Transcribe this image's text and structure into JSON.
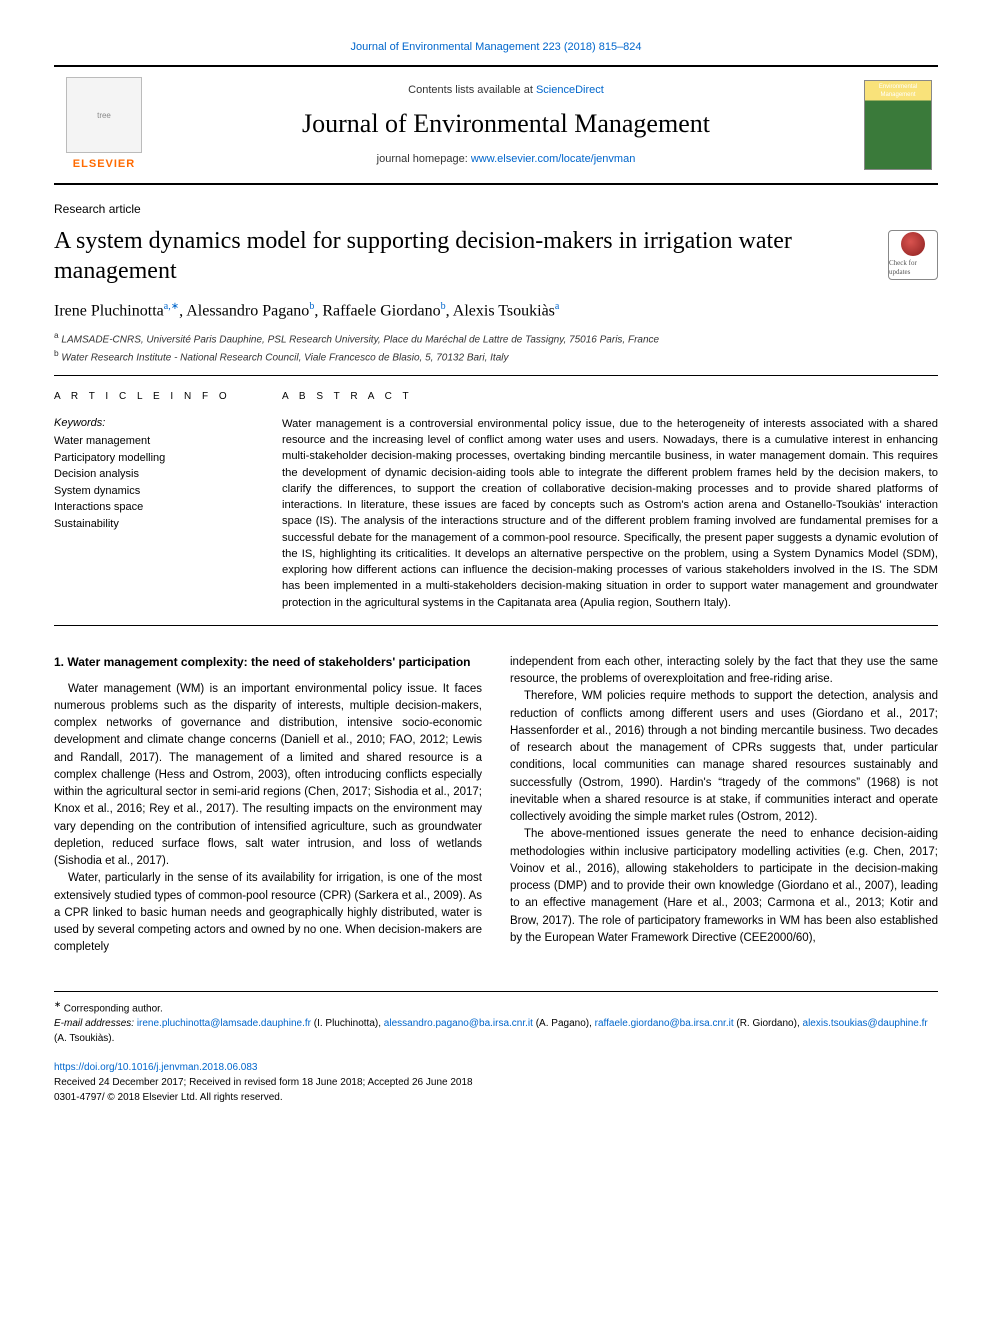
{
  "header": {
    "citation": "Journal of Environmental Management 223 (2018) 815–824",
    "contents_prefix": "Contents lists available at ",
    "contents_link": "ScienceDirect",
    "journal_name": "Journal of Environmental Management",
    "homepage_prefix": "journal homepage: ",
    "homepage_link": "www.elsevier.com/locate/jenvman",
    "publisher_label": "ELSEVIER",
    "cover_text": "Environmental Management"
  },
  "article": {
    "type": "Research article",
    "title": "A system dynamics model for supporting decision-makers in irrigation water management",
    "updates_badge": "Check for updates",
    "authors_html": "Irene Pluchinotta",
    "authors": [
      {
        "name": "Irene Pluchinotta",
        "aff": "a,",
        "corr": "∗"
      },
      {
        "name": "Alessandro Pagano",
        "aff": "b"
      },
      {
        "name": "Raffaele Giordano",
        "aff": "b"
      },
      {
        "name": "Alexis Tsoukiàs",
        "aff": "a"
      }
    ],
    "affiliations": [
      {
        "marker": "a",
        "text": "LAMSADE-CNRS, Université Paris Dauphine, PSL Research University, Place du Maréchal de Lattre de Tassigny, 75016 Paris, France"
      },
      {
        "marker": "b",
        "text": "Water Research Institute - National Research Council, Viale Francesco de Blasio, 5, 70132 Bari, Italy"
      }
    ]
  },
  "info": {
    "heading_left": "A R T I C L E  I N F O",
    "heading_right": "A B S T R A C T",
    "keywords_label": "Keywords:",
    "keywords": [
      "Water management",
      "Participatory modelling",
      "Decision analysis",
      "System dynamics",
      "Interactions space",
      "Sustainability"
    ],
    "abstract": "Water management is a controversial environmental policy issue, due to the heterogeneity of interests associated with a shared resource and the increasing level of conflict among water uses and users. Nowadays, there is a cumulative interest in enhancing multi-stakeholder decision-making processes, overtaking binding mercantile business, in water management domain. This requires the development of dynamic decision-aiding tools able to integrate the different problem frames held by the decision makers, to clarify the differences, to support the creation of collaborative decision-making processes and to provide shared platforms of interactions. In literature, these issues are faced by concepts such as Ostrom's action arena and Ostanello-Tsoukiàs' interaction space (IS). The analysis of the interactions structure and of the different problem framing involved are fundamental premises for a successful debate for the management of a common-pool resource. Specifically, the present paper suggests a dynamic evolution of the IS, highlighting its criticalities. It develops an alternative perspective on the problem, using a System Dynamics Model (SDM), exploring how different actions can influence the decision-making processes of various stakeholders involved in the IS. The SDM has been implemented in a multi-stakeholders decision-making situation in order to support water management and groundwater protection in the agricultural systems in the Capitanata area (Apulia region, Southern Italy)."
  },
  "body": {
    "section_heading": "1. Water management complexity: the need of stakeholders' participation",
    "left_paras": [
      "Water management (WM) is an important environmental policy issue. It faces numerous problems such as the disparity of interests, multiple decision-makers, complex networks of governance and distribution, intensive socio-economic development and climate change concerns (Daniell et al., 2010; FAO, 2012; Lewis and Randall, 2017). The management of a limited and shared resource is a complex challenge (Hess and Ostrom, 2003), often introducing conflicts especially within the agricultural sector in semi-arid regions (Chen, 2017; Sishodia et al., 2017; Knox et al., 2016; Rey et al., 2017). The resulting impacts on the environment may vary depending on the contribution of intensified agriculture, such as groundwater depletion, reduced surface flows, salt water intrusion, and loss of wetlands (Sishodia et al., 2017).",
      "Water, particularly in the sense of its availability for irrigation, is one of the most extensively studied types of common-pool resource (CPR) (Sarkera et al., 2009). As a CPR linked to basic human needs and geographically highly distributed, water is used by several competing actors and owned by no one. When decision-makers are completely"
    ],
    "right_paras": [
      "independent from each other, interacting solely by the fact that they use the same resource, the problems of overexploitation and free-riding arise.",
      "Therefore, WM policies require methods to support the detection, analysis and reduction of conflicts among different users and uses (Giordano et al., 2017; Hassenforder et al., 2016) through a not binding mercantile business. Two decades of research about the management of CPRs suggests that, under particular conditions, local communities can manage shared resources sustainably and successfully (Ostrom, 1990). Hardin's “tragedy of the commons” (1968) is not inevitable when a shared resource is at stake, if communities interact and operate collectively avoiding the simple market rules (Ostrom, 2012).",
      "The above-mentioned issues generate the need to enhance decision-aiding methodologies within inclusive participatory modelling activities (e.g. Chen, 2017; Voinov et al., 2016), allowing stakeholders to participate in the decision-making process (DMP) and to provide their own knowledge (Giordano et al., 2007), leading to an effective management (Hare et al., 2003; Carmona et al., 2013; Kotir and Brow, 2017). The role of participatory frameworks in WM has been also established by the European Water Framework Directive (CEE2000/60),"
    ]
  },
  "footnotes": {
    "corr_marker": "∗",
    "corr_label": "Corresponding author.",
    "email_label": "E-mail addresses:",
    "emails": [
      {
        "addr": "irene.pluchinotta@lamsade.dauphine.fr",
        "who": "(I. Pluchinotta),"
      },
      {
        "addr": "alessandro.pagano@ba.irsa.cnr.it",
        "who": "(A. Pagano),"
      },
      {
        "addr": "raffaele.giordano@ba.irsa.cnr.it",
        "who": "(R. Giordano),"
      },
      {
        "addr": "alexis.tsoukias@dauphine.fr",
        "who": "(A. Tsoukiàs)."
      }
    ]
  },
  "doi": {
    "link": "https://doi.org/10.1016/j.jenvman.2018.06.083",
    "received": "Received 24 December 2017; Received in revised form 18 June 2018; Accepted 26 June 2018",
    "copyright": "0301-4797/ © 2018 Elsevier Ltd. All rights reserved."
  },
  "colors": {
    "link": "#0066cc",
    "elsevier_orange": "#ff6a00",
    "text": "#000000",
    "bg": "#ffffff"
  }
}
